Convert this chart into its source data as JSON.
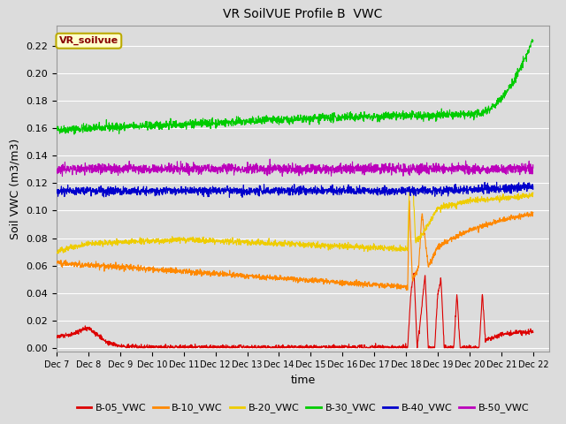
{
  "title": "VR SoilVUE Profile B  VWC",
  "xlabel": "time",
  "ylabel": "Soil VWC (m3/m3)",
  "ylim": [
    -0.003,
    0.235
  ],
  "xlim": [
    0,
    15.5
  ],
  "background_color": "#dcdcdc",
  "plot_bg_color": "#dcdcdc",
  "grid_color": "#ffffff",
  "annotation_text": "VR_soilvue",
  "annotation_bg": "#ffffcc",
  "annotation_border": "#bbaa00",
  "series": {
    "B-05_VWC": {
      "color": "#dd0000",
      "lw": 0.8
    },
    "B-10_VWC": {
      "color": "#ff8800",
      "lw": 0.8
    },
    "B-20_VWC": {
      "color": "#eecc00",
      "lw": 0.8
    },
    "B-30_VWC": {
      "color": "#00cc00",
      "lw": 0.8
    },
    "B-40_VWC": {
      "color": "#0000cc",
      "lw": 0.8
    },
    "B-50_VWC": {
      "color": "#bb00bb",
      "lw": 0.8
    }
  },
  "xtick_labels": [
    "Dec 7",
    "Dec 8",
    "Dec 9",
    "Dec 10",
    "Dec 11",
    "Dec 12",
    "Dec 13",
    "Dec 14",
    "Dec 15",
    "Dec 16",
    "Dec 17",
    "Dec 18",
    "Dec 19",
    "Dec 20",
    "Dec 21",
    "Dec 22"
  ],
  "ytick_values": [
    0.0,
    0.02,
    0.04,
    0.06,
    0.08,
    0.1,
    0.12,
    0.14,
    0.16,
    0.18,
    0.2,
    0.22
  ],
  "legend_entries": [
    "B-05_VWC",
    "B-10_VWC",
    "B-20_VWC",
    "B-30_VWC",
    "B-40_VWC",
    "B-50_VWC"
  ],
  "legend_colors": [
    "#dd0000",
    "#ff8800",
    "#eecc00",
    "#00cc00",
    "#0000cc",
    "#bb00bb"
  ],
  "title_fontsize": 10,
  "tick_fontsize": 8,
  "label_fontsize": 9
}
